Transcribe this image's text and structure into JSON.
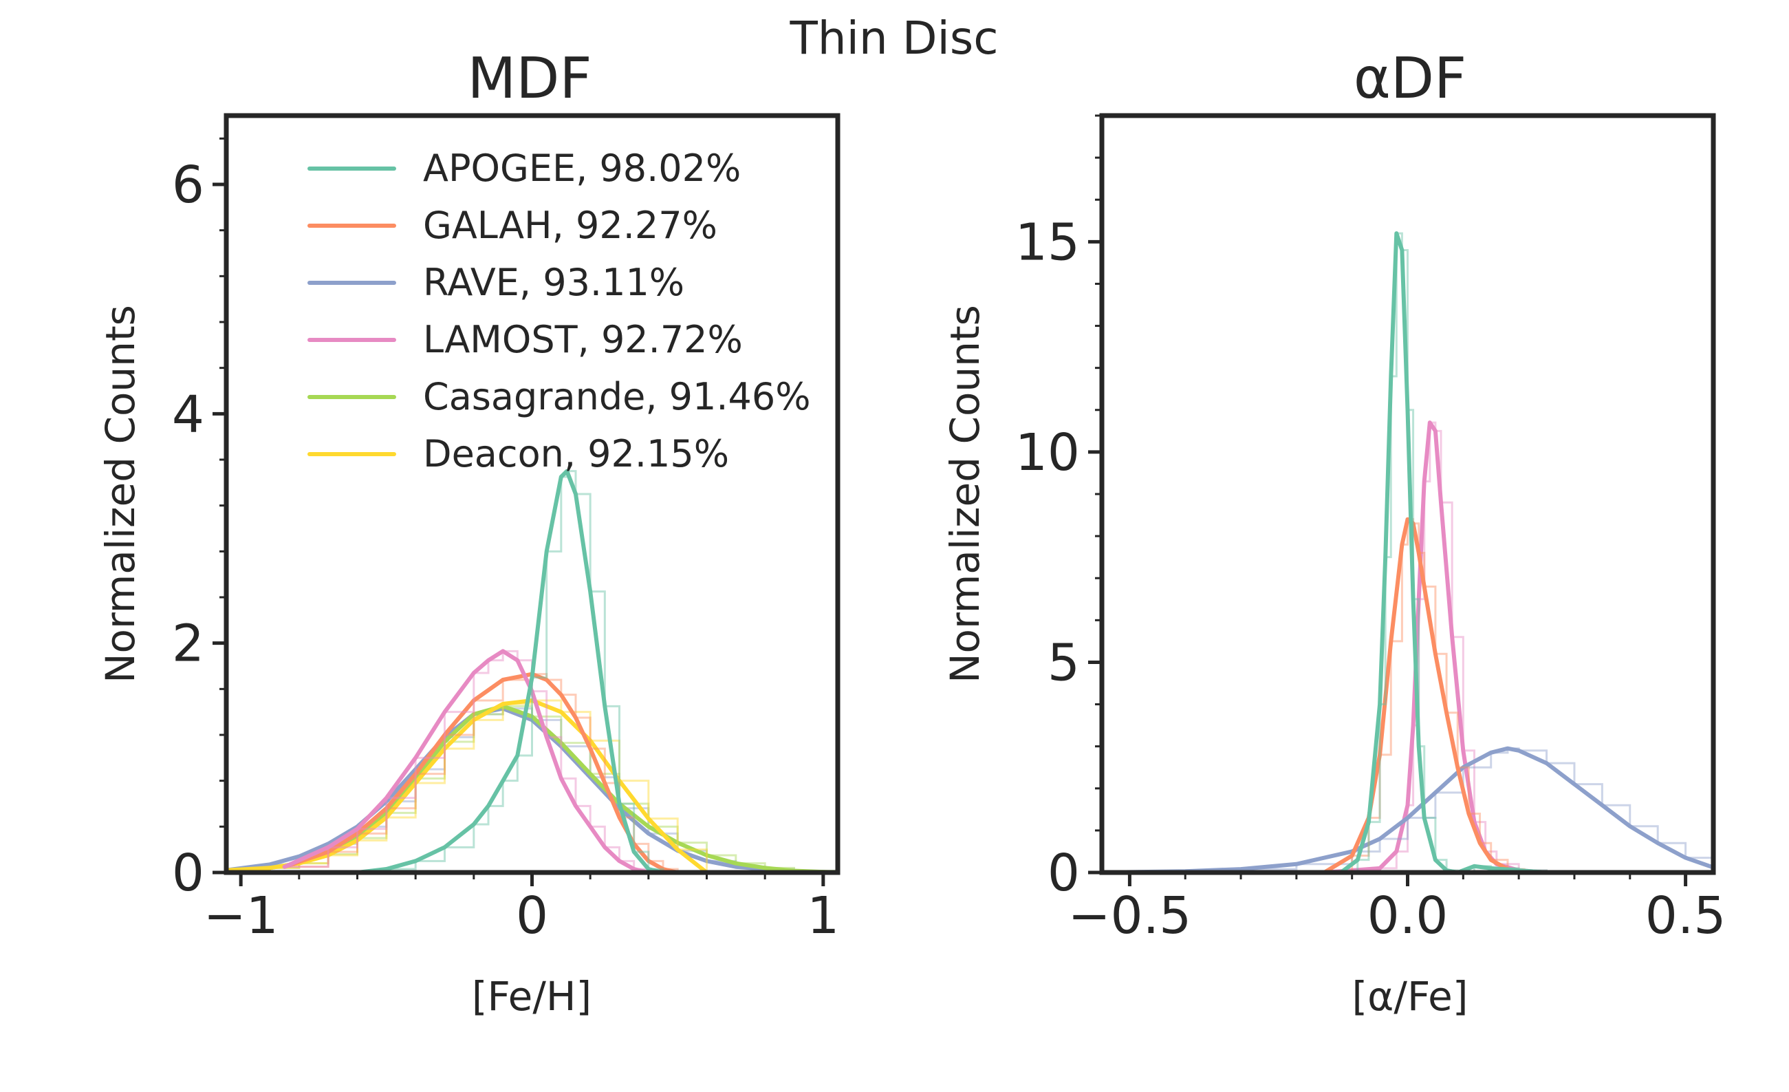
{
  "figure": {
    "suptitle": "Thin Disc"
  },
  "colors": {
    "APOGEE": "#66c2a5",
    "GALAH": "#fc8d62",
    "RAVE": "#8da0cb",
    "LAMOST": "#e78ac3",
    "Casagrande": "#a6d854",
    "Deacon": "#ffd92f",
    "axes": "#262626"
  },
  "chart_data": [
    {
      "type": "line",
      "id": "mdf",
      "title": "MDF",
      "xlabel": "[Fe/H]",
      "ylabel": "Normalized Counts",
      "xlim": [
        -1.05,
        1.05
      ],
      "ylim": [
        0,
        6.6
      ],
      "xticks": [
        -1,
        0,
        1
      ],
      "xtick_labels": [
        "−1",
        "0",
        "1"
      ],
      "yticks": [
        0,
        2,
        4,
        6
      ],
      "ytick_labels": [
        "0",
        "2",
        "4",
        "6"
      ],
      "legend": {
        "location": "upper-right",
        "entries": [
          {
            "series": "APOGEE",
            "label": "APOGEE, 98.02%"
          },
          {
            "series": "GALAH",
            "label": "GALAH, 92.27%"
          },
          {
            "series": "RAVE",
            "label": "RAVE, 93.11%"
          },
          {
            "series": "LAMOST",
            "label": "LAMOST, 92.72%"
          },
          {
            "series": "Casagrande",
            "label": "Casagrande, 91.46%"
          },
          {
            "series": "Deacon",
            "label": "Deacon, 92.15%"
          }
        ]
      },
      "series": [
        {
          "name": "RAVE",
          "x": [
            -1.05,
            -0.9,
            -0.8,
            -0.7,
            -0.6,
            -0.5,
            -0.4,
            -0.3,
            -0.2,
            -0.1,
            0.0,
            0.1,
            0.2,
            0.3,
            0.4,
            0.5,
            0.6,
            0.7,
            0.8,
            0.9,
            1.05
          ],
          "y": [
            0.02,
            0.07,
            0.14,
            0.25,
            0.4,
            0.62,
            0.9,
            1.18,
            1.38,
            1.43,
            1.33,
            1.1,
            0.83,
            0.56,
            0.34,
            0.19,
            0.1,
            0.05,
            0.03,
            0.01,
            0.0
          ]
        },
        {
          "name": "Casagrande",
          "x": [
            -1.05,
            -0.9,
            -0.8,
            -0.7,
            -0.6,
            -0.5,
            -0.4,
            -0.3,
            -0.2,
            -0.1,
            0.0,
            0.1,
            0.2,
            0.3,
            0.4,
            0.5,
            0.6,
            0.7,
            0.8,
            0.9,
            1.05
          ],
          "y": [
            0.01,
            0.04,
            0.08,
            0.16,
            0.3,
            0.52,
            0.82,
            1.14,
            1.38,
            1.45,
            1.36,
            1.13,
            0.86,
            0.6,
            0.4,
            0.26,
            0.15,
            0.08,
            0.04,
            0.015,
            0.0
          ]
        },
        {
          "name": "Deacon",
          "x": [
            -1.05,
            -0.9,
            -0.8,
            -0.7,
            -0.6,
            -0.5,
            -0.4,
            -0.3,
            -0.2,
            -0.1,
            0.0,
            0.1,
            0.2,
            0.3,
            0.4,
            0.5,
            0.6
          ],
          "y": [
            0.02,
            0.04,
            0.08,
            0.15,
            0.28,
            0.48,
            0.78,
            1.08,
            1.33,
            1.47,
            1.5,
            1.4,
            1.15,
            0.8,
            0.47,
            0.2,
            0.0
          ]
        },
        {
          "name": "GALAH",
          "x": [
            -0.85,
            -0.7,
            -0.6,
            -0.5,
            -0.4,
            -0.3,
            -0.2,
            -0.1,
            0.0,
            0.05,
            0.1,
            0.15,
            0.2,
            0.25,
            0.3,
            0.35,
            0.4,
            0.45,
            0.5
          ],
          "y": [
            0.05,
            0.18,
            0.34,
            0.56,
            0.86,
            1.2,
            1.5,
            1.68,
            1.73,
            1.68,
            1.55,
            1.35,
            1.08,
            0.78,
            0.48,
            0.25,
            0.1,
            0.03,
            0.0
          ]
        },
        {
          "name": "LAMOST",
          "x": [
            -0.85,
            -0.7,
            -0.6,
            -0.5,
            -0.4,
            -0.3,
            -0.2,
            -0.15,
            -0.1,
            -0.05,
            0.0,
            0.05,
            0.1,
            0.15,
            0.2,
            0.25,
            0.3,
            0.35,
            0.4
          ],
          "y": [
            0.05,
            0.22,
            0.38,
            0.65,
            1.0,
            1.4,
            1.74,
            1.85,
            1.93,
            1.85,
            1.58,
            1.18,
            0.82,
            0.58,
            0.4,
            0.22,
            0.1,
            0.03,
            0.0
          ]
        },
        {
          "name": "APOGEE",
          "x": [
            -0.6,
            -0.5,
            -0.4,
            -0.3,
            -0.2,
            -0.15,
            -0.1,
            -0.05,
            0.0,
            0.05,
            0.1,
            0.12,
            0.15,
            0.2,
            0.25,
            0.3,
            0.35,
            0.4,
            0.45
          ],
          "y": [
            0.0,
            0.03,
            0.1,
            0.22,
            0.42,
            0.58,
            0.8,
            1.02,
            1.7,
            2.8,
            3.45,
            3.5,
            3.3,
            2.45,
            1.45,
            0.6,
            0.18,
            0.03,
            0.0
          ]
        }
      ]
    },
    {
      "type": "line",
      "id": "adf",
      "title": "αDF",
      "xlabel": "[α/Fe]",
      "ylabel": "Normalized Counts",
      "xlim": [
        -0.55,
        0.55
      ],
      "ylim": [
        0,
        18
      ],
      "xticks": [
        -0.5,
        0.0,
        0.5
      ],
      "xtick_labels": [
        "−0.5",
        "0.0",
        "0.5"
      ],
      "yticks": [
        0,
        5,
        10,
        15
      ],
      "ytick_labels": [
        "0",
        "5",
        "10",
        "15"
      ],
      "series": [
        {
          "name": "LAMOST",
          "x": [
            -0.55,
            -0.3,
            -0.15,
            -0.05,
            -0.02,
            0.0,
            0.01,
            0.02,
            0.03,
            0.04,
            0.05,
            0.06,
            0.08,
            0.1,
            0.12,
            0.14,
            0.16,
            0.2,
            0.25
          ],
          "y": [
            0.0,
            0.0,
            0.0,
            0.1,
            0.5,
            1.6,
            3.5,
            6.5,
            9.3,
            10.7,
            10.5,
            8.8,
            5.6,
            2.9,
            1.2,
            0.5,
            0.2,
            0.05,
            0.0
          ]
        },
        {
          "name": "RAVE",
          "x": [
            -0.55,
            -0.4,
            -0.3,
            -0.2,
            -0.1,
            -0.05,
            0.0,
            0.05,
            0.1,
            0.15,
            0.18,
            0.2,
            0.25,
            0.3,
            0.35,
            0.4,
            0.45,
            0.5,
            0.55
          ],
          "y": [
            0.0,
            0.03,
            0.08,
            0.2,
            0.5,
            0.8,
            1.3,
            1.9,
            2.5,
            2.85,
            2.95,
            2.9,
            2.6,
            2.1,
            1.6,
            1.1,
            0.7,
            0.35,
            0.12
          ]
        },
        {
          "name": "GALAH",
          "x": [
            -0.15,
            -0.1,
            -0.07,
            -0.05,
            -0.03,
            -0.01,
            0.0,
            0.01,
            0.02,
            0.03,
            0.05,
            0.07,
            0.09,
            0.11,
            0.13,
            0.15,
            0.18,
            0.21
          ],
          "y": [
            0.0,
            0.4,
            1.3,
            2.8,
            5.5,
            7.8,
            8.4,
            8.3,
            7.6,
            6.8,
            5.2,
            3.8,
            2.5,
            1.4,
            0.7,
            0.3,
            0.08,
            0.0
          ]
        },
        {
          "name": "APOGEE",
          "x": [
            -0.12,
            -0.09,
            -0.07,
            -0.05,
            -0.04,
            -0.03,
            -0.02,
            -0.01,
            0.0,
            0.01,
            0.02,
            0.03,
            0.05,
            0.07,
            0.09,
            0.12,
            0.15,
            0.2,
            0.25
          ],
          "y": [
            0.0,
            0.3,
            1.2,
            4.0,
            7.5,
            11.8,
            15.2,
            14.8,
            11.0,
            6.5,
            3.0,
            1.3,
            0.3,
            0.05,
            0.0,
            0.15,
            0.1,
            0.05,
            0.0
          ]
        }
      ]
    }
  ]
}
